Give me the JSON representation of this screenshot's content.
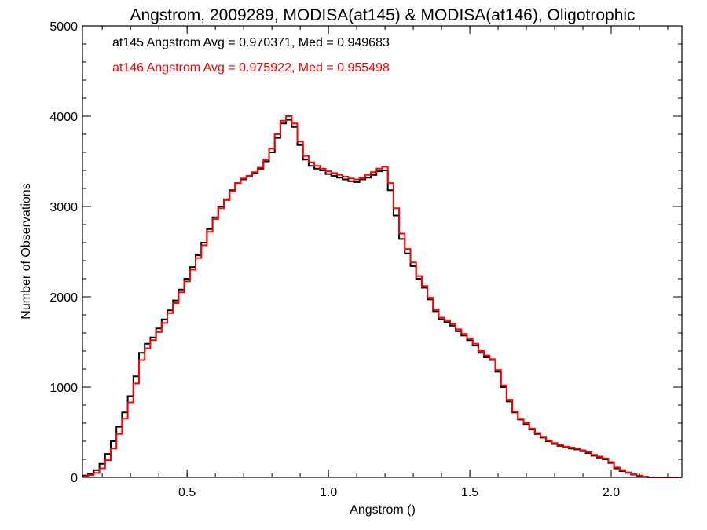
{
  "chart_data": {
    "type": "line",
    "title": "Angstrom, 2009289, MODISA(at145) & MODISA(at146), Oligotrophic",
    "xlabel": "Angstrom ()",
    "ylabel": "Number of Observations",
    "xlim": [
      0.13,
      2.25
    ],
    "ylim": [
      0,
      5000
    ],
    "x_ticks": [
      0.5,
      1.0,
      1.5,
      2.0
    ],
    "x_tick_labels": [
      "0.5",
      "1.0",
      "1.5",
      "2.0"
    ],
    "y_ticks": [
      0,
      1000,
      2000,
      3000,
      4000,
      5000
    ],
    "y_tick_labels": [
      "0",
      "1000",
      "2000",
      "3000",
      "4000",
      "5000"
    ],
    "grid": false,
    "legend_placement": "top-left",
    "annotations": [
      {
        "text": "at145 Angstrom Avg = 0.970371, Med = 0.949683",
        "color": "#000000"
      },
      {
        "text": "at146 Angstrom Avg = 0.975922, Med = 0.955498",
        "color": "#ff0000"
      }
    ],
    "series": [
      {
        "color": "#000000",
        "x": [
          0.13,
          0.15,
          0.17,
          0.19,
          0.21,
          0.23,
          0.25,
          0.27,
          0.29,
          0.31,
          0.33,
          0.35,
          0.37,
          0.39,
          0.41,
          0.43,
          0.45,
          0.47,
          0.49,
          0.51,
          0.53,
          0.55,
          0.57,
          0.59,
          0.61,
          0.63,
          0.65,
          0.67,
          0.69,
          0.71,
          0.73,
          0.75,
          0.77,
          0.79,
          0.81,
          0.83,
          0.85,
          0.87,
          0.89,
          0.91,
          0.93,
          0.95,
          0.97,
          0.99,
          1.01,
          1.03,
          1.05,
          1.07,
          1.09,
          1.11,
          1.13,
          1.15,
          1.17,
          1.19,
          1.21,
          1.23,
          1.25,
          1.27,
          1.29,
          1.31,
          1.33,
          1.35,
          1.37,
          1.39,
          1.41,
          1.43,
          1.45,
          1.47,
          1.49,
          1.51,
          1.53,
          1.55,
          1.57,
          1.59,
          1.61,
          1.63,
          1.65,
          1.67,
          1.69,
          1.71,
          1.73,
          1.75,
          1.77,
          1.79,
          1.81,
          1.83,
          1.85,
          1.87,
          1.89,
          1.91,
          1.93,
          1.95,
          1.97,
          1.99,
          2.01,
          2.03,
          2.05,
          2.07,
          2.09,
          2.11,
          2.13,
          2.15,
          2.17,
          2.19,
          2.21,
          2.23,
          2.25
        ],
        "y": [
          20,
          40,
          80,
          150,
          260,
          400,
          560,
          720,
          900,
          1120,
          1380,
          1480,
          1550,
          1650,
          1750,
          1850,
          1960,
          2080,
          2200,
          2330,
          2460,
          2600,
          2750,
          2880,
          3000,
          3080,
          3180,
          3260,
          3300,
          3330,
          3370,
          3420,
          3500,
          3600,
          3760,
          3920,
          3960,
          3880,
          3680,
          3520,
          3450,
          3420,
          3400,
          3360,
          3340,
          3320,
          3300,
          3280,
          3270,
          3300,
          3320,
          3350,
          3390,
          3400,
          3180,
          2900,
          2640,
          2480,
          2340,
          2200,
          2100,
          1970,
          1840,
          1750,
          1720,
          1680,
          1620,
          1570,
          1520,
          1460,
          1380,
          1330,
          1300,
          1170,
          1000,
          840,
          720,
          640,
          590,
          530,
          480,
          440,
          400,
          370,
          350,
          330,
          320,
          310,
          290,
          270,
          240,
          220,
          200,
          160,
          100,
          70,
          50,
          30,
          15,
          5,
          0,
          0,
          0,
          0,
          0,
          0,
          0
        ]
      },
      {
        "color": "#ff0000",
        "x": [
          0.13,
          0.15,
          0.17,
          0.19,
          0.21,
          0.23,
          0.25,
          0.27,
          0.29,
          0.31,
          0.33,
          0.35,
          0.37,
          0.39,
          0.41,
          0.43,
          0.45,
          0.47,
          0.49,
          0.51,
          0.53,
          0.55,
          0.57,
          0.59,
          0.61,
          0.63,
          0.65,
          0.67,
          0.69,
          0.71,
          0.73,
          0.75,
          0.77,
          0.79,
          0.81,
          0.83,
          0.85,
          0.87,
          0.89,
          0.91,
          0.93,
          0.95,
          0.97,
          0.99,
          1.01,
          1.03,
          1.05,
          1.07,
          1.09,
          1.11,
          1.13,
          1.15,
          1.17,
          1.19,
          1.21,
          1.23,
          1.25,
          1.27,
          1.29,
          1.31,
          1.33,
          1.35,
          1.37,
          1.39,
          1.41,
          1.43,
          1.45,
          1.47,
          1.49,
          1.51,
          1.53,
          1.55,
          1.57,
          1.59,
          1.61,
          1.63,
          1.65,
          1.67,
          1.69,
          1.71,
          1.73,
          1.75,
          1.77,
          1.79,
          1.81,
          1.83,
          1.85,
          1.87,
          1.89,
          1.91,
          1.93,
          1.95,
          1.97,
          1.99,
          2.01,
          2.03,
          2.05,
          2.07,
          2.09,
          2.11,
          2.13,
          2.15,
          2.17,
          2.19,
          2.21,
          2.23,
          2.25
        ],
        "y": [
          10,
          25,
          50,
          100,
          190,
          320,
          480,
          650,
          830,
          1040,
          1300,
          1430,
          1520,
          1610,
          1710,
          1820,
          1930,
          2050,
          2170,
          2300,
          2430,
          2570,
          2720,
          2860,
          2980,
          3070,
          3170,
          3260,
          3310,
          3340,
          3380,
          3430,
          3520,
          3640,
          3800,
          3950,
          4000,
          3920,
          3720,
          3560,
          3490,
          3450,
          3420,
          3390,
          3370,
          3350,
          3330,
          3310,
          3300,
          3320,
          3350,
          3380,
          3420,
          3440,
          3260,
          2980,
          2700,
          2530,
          2380,
          2230,
          2120,
          1990,
          1860,
          1770,
          1740,
          1700,
          1640,
          1590,
          1540,
          1480,
          1400,
          1350,
          1310,
          1190,
          1020,
          860,
          730,
          650,
          600,
          540,
          490,
          450,
          410,
          380,
          360,
          340,
          330,
          320,
          300,
          280,
          250,
          230,
          210,
          170,
          110,
          80,
          55,
          35,
          20,
          8,
          0,
          0,
          0,
          0,
          0,
          0,
          0
        ]
      }
    ]
  }
}
